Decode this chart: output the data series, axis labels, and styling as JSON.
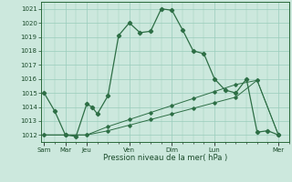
{
  "xlabel": "Pression niveau de la mer( hPa )",
  "bg_color": "#cce8dd",
  "grid_color": "#99ccbb",
  "line_color": "#2d6e45",
  "ylim": [
    1011.5,
    1021.5
  ],
  "y_ticks": [
    1012,
    1013,
    1014,
    1015,
    1016,
    1017,
    1018,
    1019,
    1020,
    1021
  ],
  "x_major_labels": [
    "Sam",
    "Mar",
    "Jeu",
    "Ven",
    "Dim",
    "Lun",
    "Mer"
  ],
  "x_major_pos": [
    0,
    1,
    2,
    4,
    6,
    8,
    11
  ],
  "xlim": [
    -0.15,
    11.5
  ],
  "line1_x": [
    0,
    0.5,
    1,
    1.5,
    2,
    2.25,
    2.5,
    3,
    3.5,
    4,
    4.5,
    5,
    5.5,
    6,
    6.5,
    7,
    7.5,
    8,
    8.5,
    9,
    9.5,
    10,
    10.5,
    11
  ],
  "line1_y": [
    1015.0,
    1013.7,
    1012.0,
    1011.9,
    1014.2,
    1014.0,
    1013.5,
    1014.8,
    1019.1,
    1020.0,
    1019.3,
    1019.4,
    1021.0,
    1020.9,
    1019.5,
    1018.0,
    1017.8,
    1016.0,
    1015.2,
    1015.0,
    1016.0,
    1012.2,
    1012.3,
    1012.0
  ],
  "line2_x": [
    0,
    1,
    2,
    3,
    4,
    5,
    6,
    7,
    8,
    9,
    10,
    11
  ],
  "line2_y": [
    1012.0,
    1012.0,
    1012.0,
    1012.3,
    1012.7,
    1013.1,
    1013.5,
    1013.9,
    1014.3,
    1014.7,
    1015.9,
    1012.0
  ],
  "line3_x": [
    0,
    1,
    2,
    3,
    4,
    5,
    6,
    7,
    8,
    9,
    10,
    11
  ],
  "line3_y": [
    1012.0,
    1012.0,
    1012.0,
    1012.6,
    1013.1,
    1013.6,
    1014.1,
    1014.6,
    1015.1,
    1015.6,
    1015.9,
    1012.0
  ]
}
